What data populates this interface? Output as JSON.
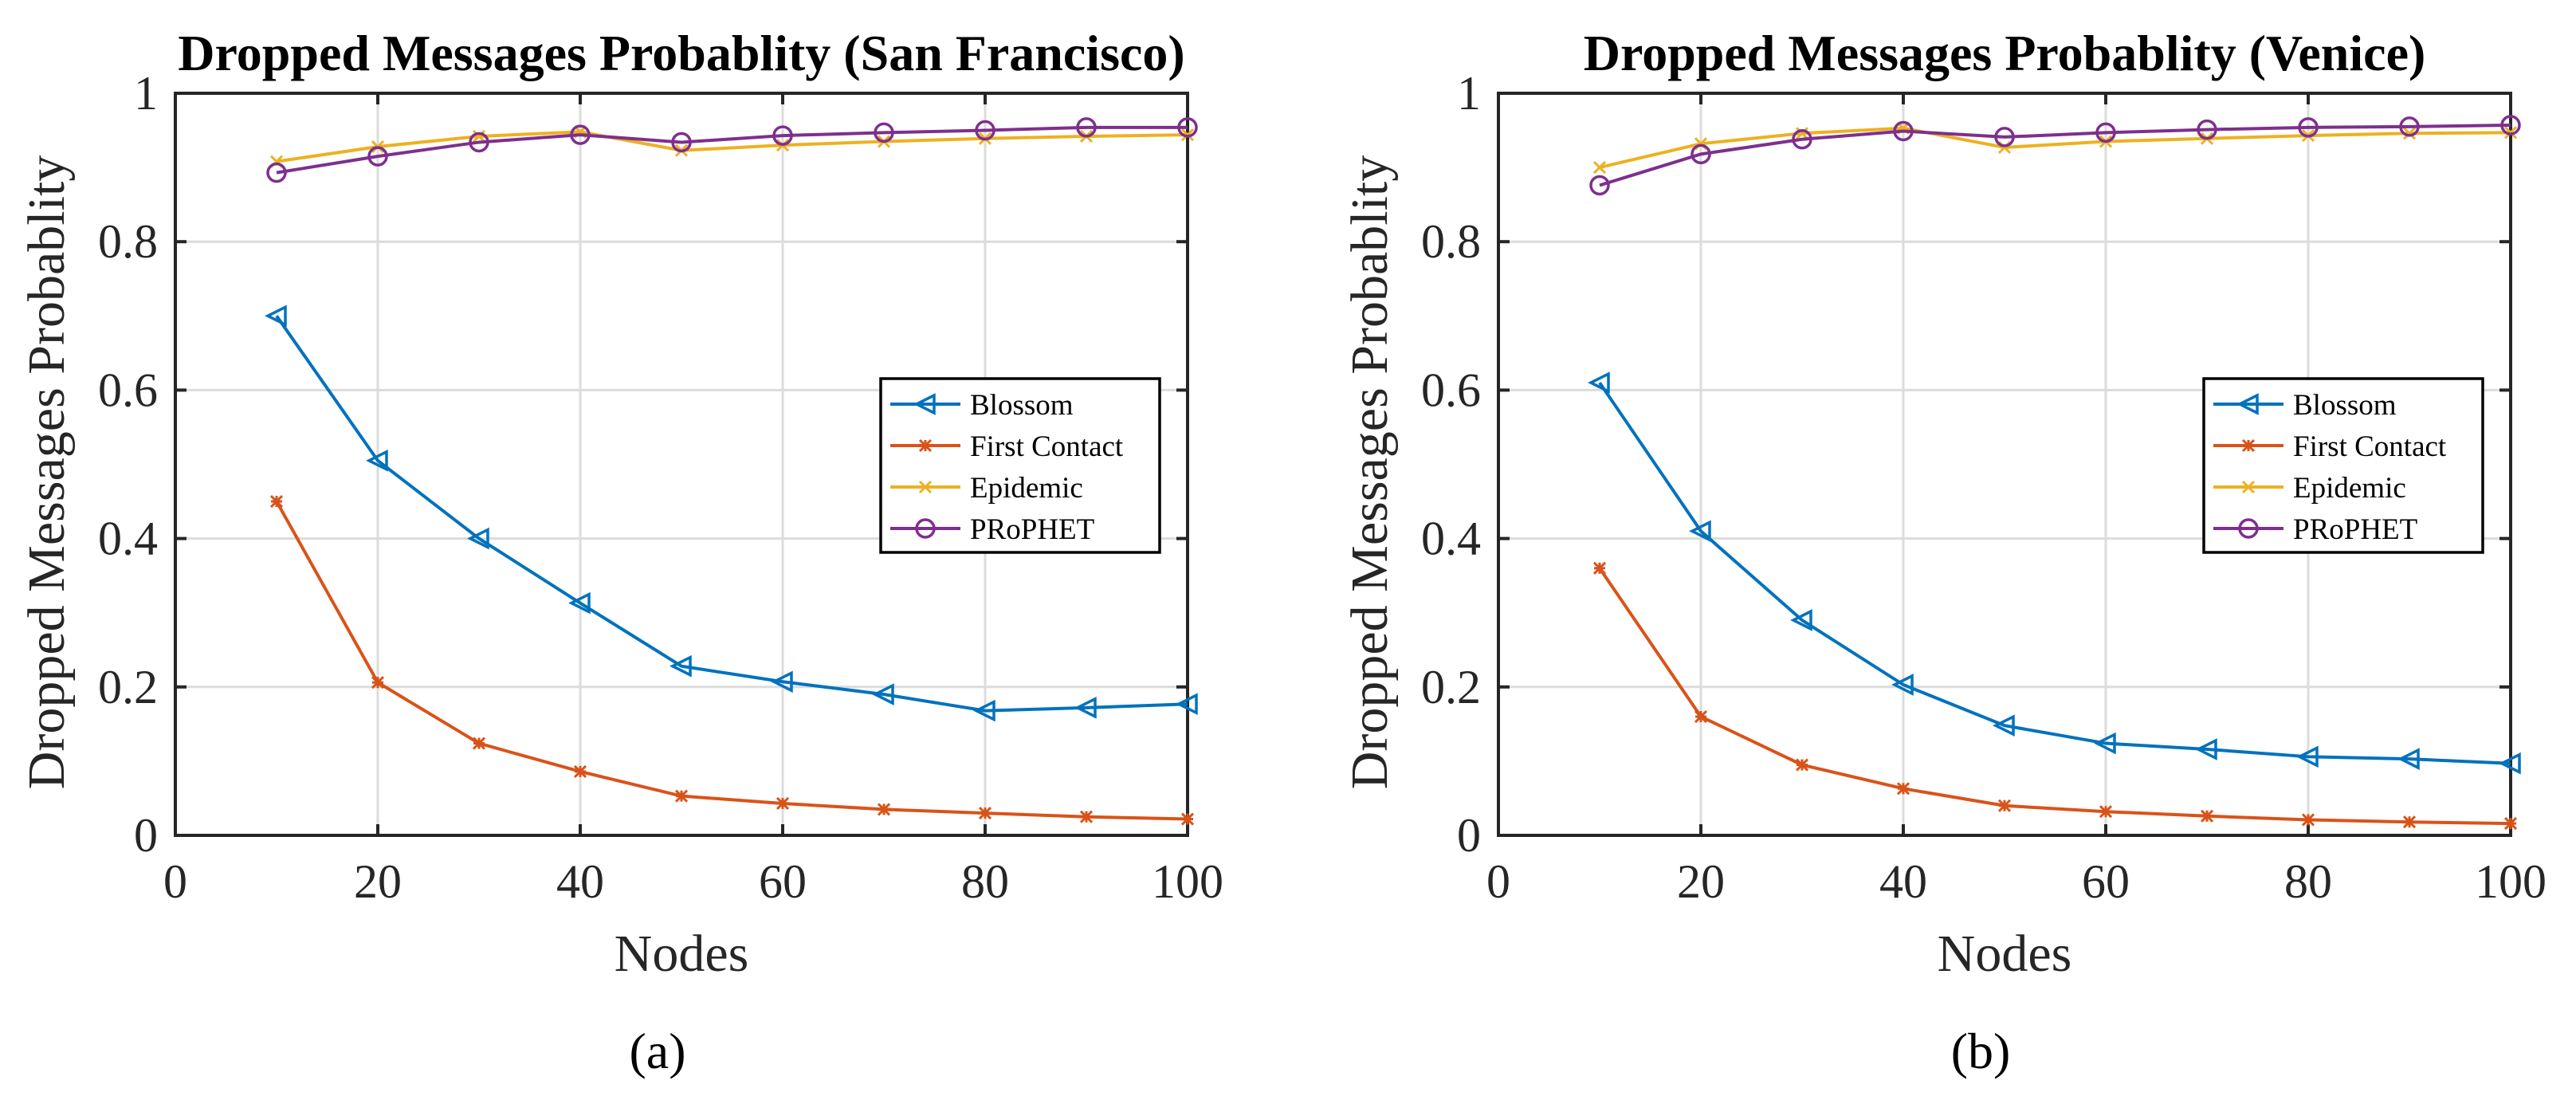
{
  "colors": {
    "Blossom": "#0072BD",
    "First Contact": "#D95319",
    "Epidemic": "#EDB120",
    "PRoPHET": "#7E2F8E"
  },
  "chart_data": [
    {
      "type": "line",
      "panel_label": "(a)",
      "title": "Dropped Messages Probablity (San Francisco)",
      "xlabel": "Nodes",
      "ylabel": "Dropped Messages Probablity",
      "xlim": [
        0,
        100
      ],
      "ylim": [
        0,
        1
      ],
      "xticks": [
        "0",
        "20",
        "40",
        "60",
        "80",
        "100"
      ],
      "yticks": [
        "0",
        "0.2",
        "0.4",
        "0.6",
        "0.8",
        "1"
      ],
      "grid": true,
      "legend_position": "right-middle",
      "x": [
        10,
        20,
        30,
        40,
        50,
        60,
        70,
        80,
        90,
        100
      ],
      "series": [
        {
          "name": "Blossom",
          "marker": "triangle-left",
          "values": [
            0.7,
            0.505,
            0.4,
            0.313,
            0.228,
            0.207,
            0.19,
            0.168,
            0.172,
            0.177
          ]
        },
        {
          "name": "First Contact",
          "marker": "asterisk",
          "values": [
            0.45,
            0.206,
            0.124,
            0.086,
            0.053,
            0.043,
            0.035,
            0.03,
            0.025,
            0.022
          ]
        },
        {
          "name": "Epidemic",
          "marker": "x",
          "values": [
            0.908,
            0.928,
            0.942,
            0.948,
            0.923,
            0.93,
            0.935,
            0.939,
            0.942,
            0.944
          ]
        },
        {
          "name": "PRoPHET",
          "marker": "circle",
          "values": [
            0.893,
            0.915,
            0.934,
            0.944,
            0.934,
            0.943,
            0.947,
            0.95,
            0.954,
            0.954
          ]
        }
      ]
    },
    {
      "type": "line",
      "panel_label": "(b)",
      "title": "Dropped Messages Probablity (Venice)",
      "xlabel": "Nodes",
      "ylabel": "Dropped Messages Probablity",
      "xlim": [
        0,
        100
      ],
      "ylim": [
        0,
        1
      ],
      "xticks": [
        "0",
        "20",
        "40",
        "60",
        "80",
        "100"
      ],
      "yticks": [
        "0",
        "0.2",
        "0.4",
        "0.6",
        "0.8",
        "1"
      ],
      "grid": true,
      "legend_position": "right-middle",
      "x": [
        10,
        20,
        30,
        40,
        50,
        60,
        70,
        80,
        90,
        100
      ],
      "series": [
        {
          "name": "Blossom",
          "marker": "triangle-left",
          "values": [
            0.61,
            0.41,
            0.29,
            0.203,
            0.148,
            0.124,
            0.116,
            0.106,
            0.103,
            0.097
          ]
        },
        {
          "name": "First Contact",
          "marker": "asterisk",
          "values": [
            0.36,
            0.16,
            0.095,
            0.063,
            0.04,
            0.032,
            0.026,
            0.021,
            0.018,
            0.016
          ]
        },
        {
          "name": "Epidemic",
          "marker": "x",
          "values": [
            0.9,
            0.932,
            0.946,
            0.953,
            0.927,
            0.935,
            0.939,
            0.943,
            0.946,
            0.947
          ]
        },
        {
          "name": "PRoPHET",
          "marker": "circle",
          "values": [
            0.876,
            0.918,
            0.938,
            0.949,
            0.941,
            0.947,
            0.951,
            0.954,
            0.955,
            0.957
          ]
        }
      ]
    }
  ]
}
